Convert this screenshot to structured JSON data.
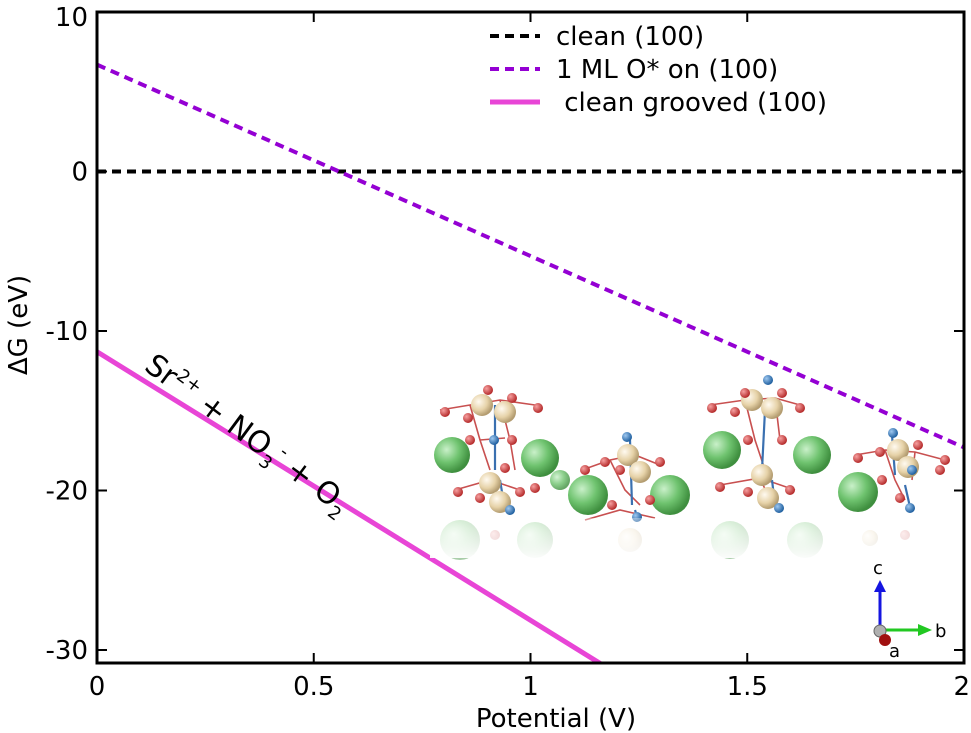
{
  "chart_data": {
    "type": "line",
    "title": "",
    "xlabel": "Potential (V)",
    "ylabel": "ΔG (eV)",
    "xlim": [
      0,
      2
    ],
    "ylim": [
      -31,
      10
    ],
    "x_ticks": [
      0,
      0.5,
      1,
      1.5,
      2
    ],
    "x_tick_labels": [
      "0",
      "0.5",
      "1",
      "1.5",
      "2"
    ],
    "y_ticks": [
      10,
      0,
      -10,
      -20,
      -30
    ],
    "y_tick_labels": [
      "10",
      "0",
      "-10",
      "-20",
      "-30"
    ],
    "grid": false,
    "legend_position": "top-right",
    "series": [
      {
        "name": "clean (100)",
        "label": "clean (100)",
        "style": "dashed",
        "color": "#000000",
        "x": [
          0,
          2
        ],
        "y": [
          0,
          0
        ]
      },
      {
        "name": "1 ML O* on (100)",
        "label": "1 ML O* on (100)",
        "style": "dashed",
        "color": "#9400d3",
        "x": [
          0,
          2
        ],
        "y": [
          6.7,
          -17.3
        ]
      },
      {
        "name": "clean grooved (100)",
        "label": " clean grooved (100)",
        "style": "solid",
        "color": "#e845d6",
        "x": [
          0,
          1.17
        ],
        "y": [
          -11.3,
          -31
        ]
      }
    ],
    "annotations": [
      {
        "id": "reaction",
        "parts": [
          "Sr",
          "2+",
          " + NO",
          "3",
          "-",
          " + O",
          "2"
        ]
      }
    ],
    "inset": {
      "description_icon": "crystal-structure-inset",
      "axes": [
        "c",
        "b",
        "a"
      ],
      "colors": {
        "c": "#1515e0",
        "b": "#22c822",
        "a": "#a01010"
      }
    }
  }
}
